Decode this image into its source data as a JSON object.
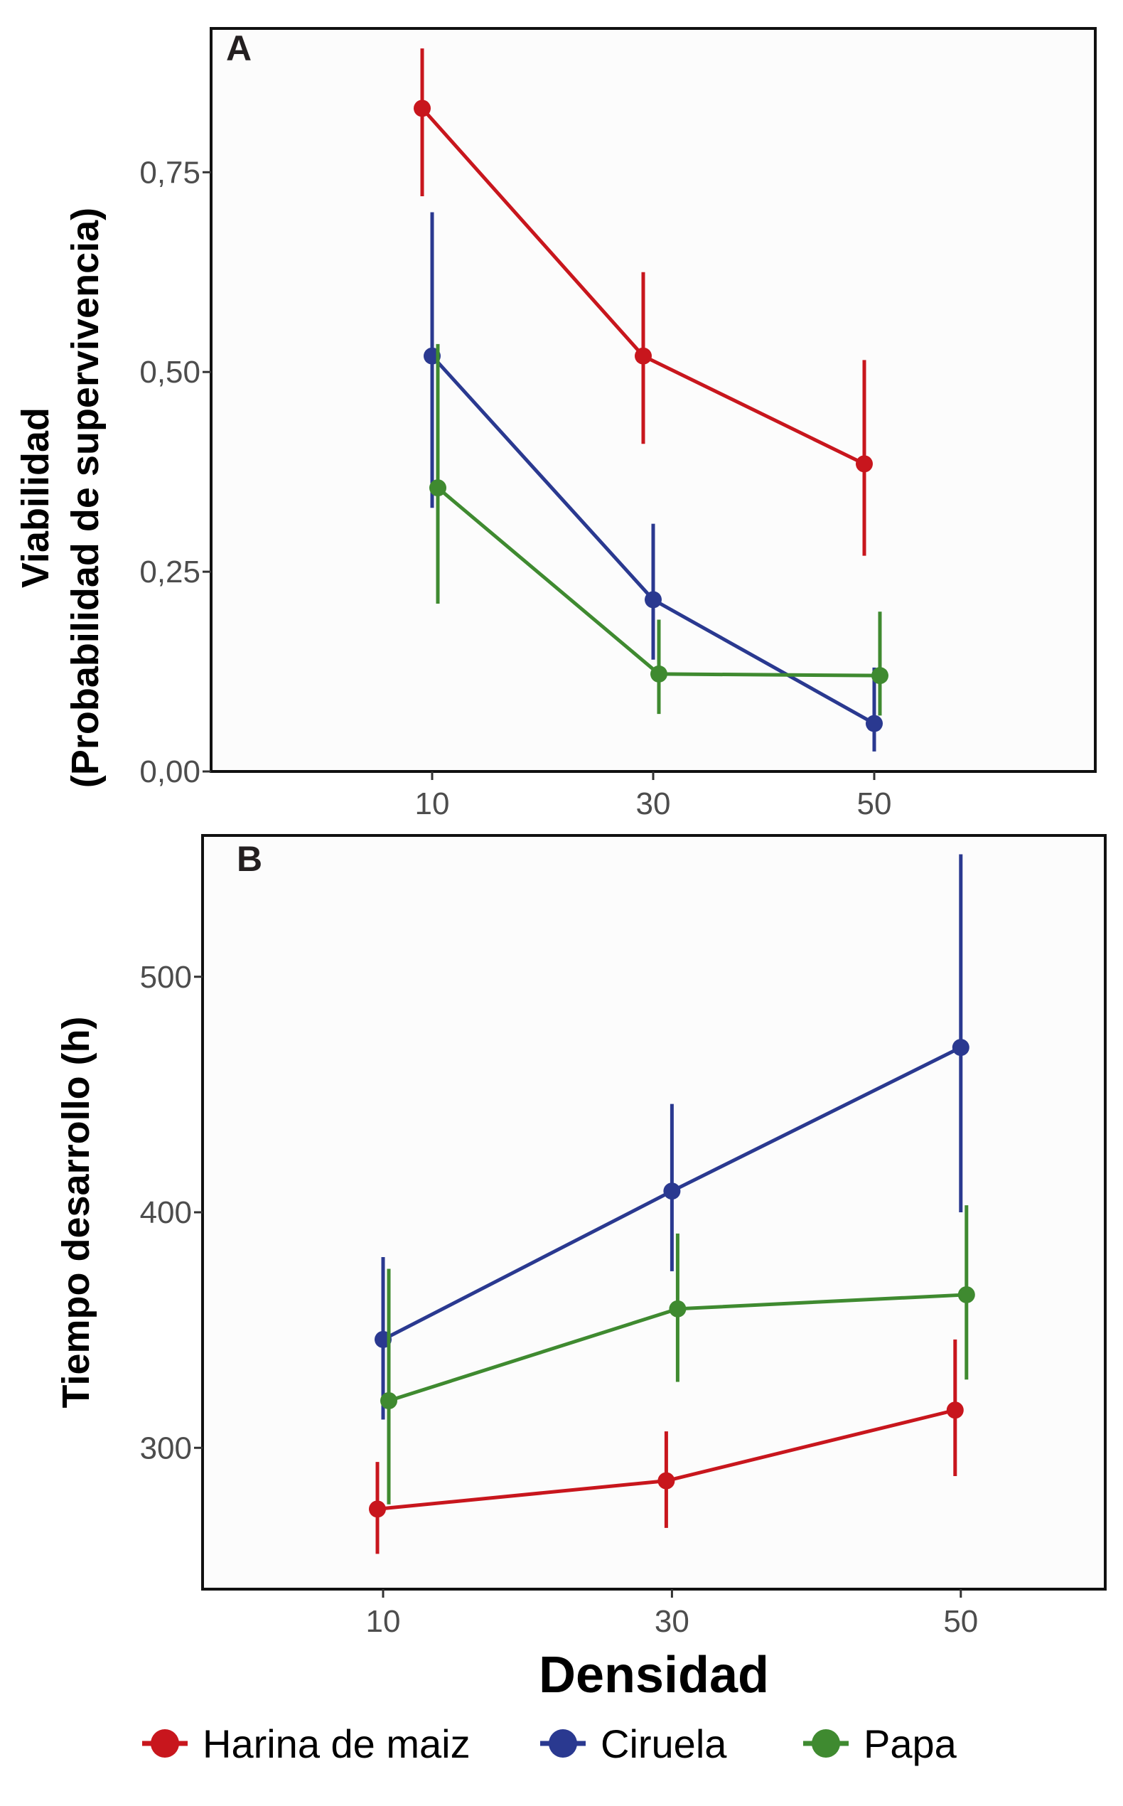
{
  "x_title": "Densidad",
  "legend": [
    {
      "label": "Harina de maiz",
      "color": "#c8161d"
    },
    {
      "label": "Ciruela",
      "color": "#2a3990"
    },
    {
      "label": "Papa",
      "color": "#3f8a30"
    }
  ],
  "chart_data": [
    {
      "type": "line",
      "panel": "A",
      "ylabel_line1": "Viabilidad",
      "ylabel_line2": "(Probabilidad de supervivencia)",
      "x": [
        10,
        30,
        50
      ],
      "x_ticks": [
        "10",
        "30",
        "50"
      ],
      "xlim": [
        -10,
        70
      ],
      "ylim": [
        0,
        0.93
      ],
      "y_ticks": [
        0,
        0.25,
        0.5,
        0.75
      ],
      "y_tick_labels": [
        "0,00",
        "0,25",
        "0,50",
        "0,75"
      ],
      "series": [
        {
          "name": "Harina de maiz",
          "color": "#c8161d",
          "values": [
            0.83,
            0.52,
            0.385
          ],
          "lower": [
            0.72,
            0.41,
            0.27
          ],
          "upper": [
            0.905,
            0.625,
            0.515
          ]
        },
        {
          "name": "Ciruela",
          "color": "#2a3990",
          "values": [
            0.52,
            0.215,
            0.06
          ],
          "lower": [
            0.33,
            0.14,
            0.025
          ],
          "upper": [
            0.7,
            0.31,
            0.13
          ]
        },
        {
          "name": "Papa",
          "color": "#3f8a30",
          "values": [
            0.355,
            0.122,
            0.12
          ],
          "lower": [
            0.21,
            0.072,
            0.07
          ],
          "upper": [
            0.535,
            0.19,
            0.2
          ]
        }
      ]
    },
    {
      "type": "line",
      "panel": "B",
      "ylabel_line1": "Tiempo desarrollo (h)",
      "x": [
        10,
        30,
        50
      ],
      "x_ticks": [
        "10",
        "30",
        "50"
      ],
      "xlim": [
        -2.5,
        60
      ],
      "ylim": [
        240,
        560
      ],
      "y_ticks": [
        300,
        400,
        500
      ],
      "y_tick_labels": [
        "300",
        "400",
        "500"
      ],
      "series": [
        {
          "name": "Harina de maiz",
          "color": "#c8161d",
          "values": [
            274,
            286,
            316
          ],
          "lower": [
            255,
            266,
            288
          ],
          "upper": [
            294,
            307,
            346
          ]
        },
        {
          "name": "Ciruela",
          "color": "#2a3990",
          "values": [
            346,
            409,
            470
          ],
          "lower": [
            312,
            375,
            400
          ],
          "upper": [
            381,
            446,
            552
          ]
        },
        {
          "name": "Papa",
          "color": "#3f8a30",
          "values": [
            320,
            359,
            365
          ],
          "lower": [
            276,
            328,
            329
          ],
          "upper": [
            376,
            391,
            403
          ]
        }
      ]
    }
  ]
}
